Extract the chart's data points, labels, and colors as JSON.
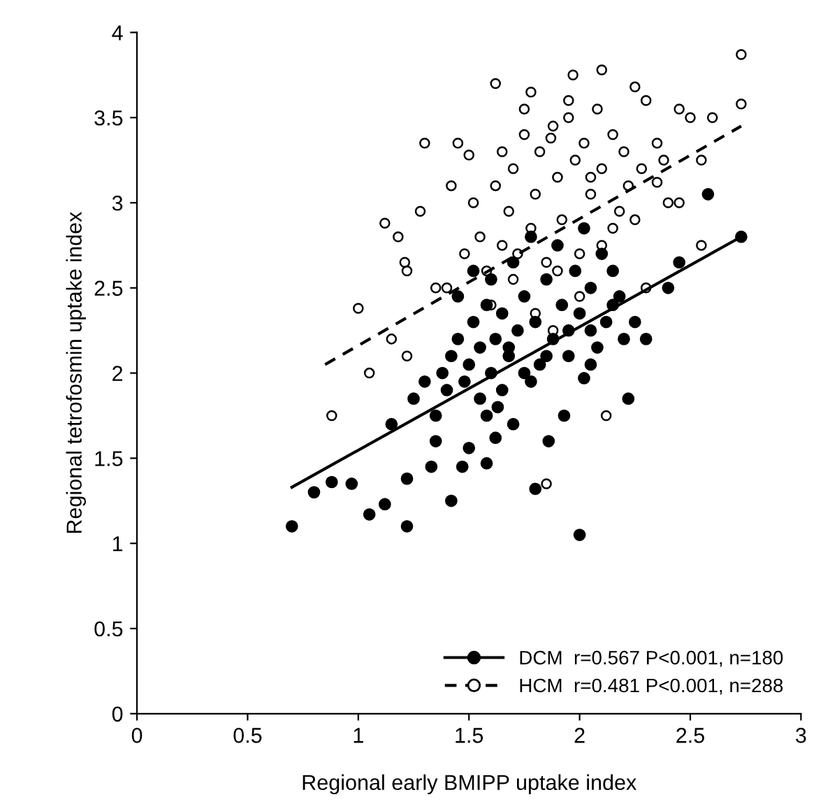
{
  "chart_data": {
    "type": "scatter",
    "xlabel": "Regional early BMIPP uptake index",
    "ylabel": "Regional tetrofosmin uptake index",
    "xlim": [
      0,
      3
    ],
    "ylim": [
      0,
      4
    ],
    "xticks": [
      0,
      0.5,
      1,
      1.5,
      2,
      2.5,
      3
    ],
    "yticks": [
      0,
      0.5,
      1,
      1.5,
      2,
      2.5,
      3,
      3.5,
      4
    ],
    "grid": false,
    "legend": "bottom right",
    "series": [
      {
        "name": "DCM  r=0.567 P<0.001, n=180",
        "color": "#000000",
        "marker": "circle",
        "x": [
          0.7,
          0.8,
          0.88,
          0.97,
          1.05,
          1.12,
          1.22,
          1.22,
          1.33,
          1.42,
          1.47,
          1.5,
          1.58,
          1.62,
          1.8,
          2.0,
          1.86,
          1.93,
          2.22,
          2.02,
          2.4,
          2.58,
          2.73,
          2.45,
          2.2,
          2.15,
          2.05,
          1.15,
          1.25,
          1.3,
          1.35,
          1.38,
          1.4,
          1.42,
          1.45,
          1.48,
          1.5,
          1.52,
          1.55,
          1.55,
          1.58,
          1.6,
          1.6,
          1.62,
          1.65,
          1.65,
          1.68,
          1.7,
          1.72,
          1.75,
          1.75,
          1.78,
          1.8,
          1.82,
          1.85,
          1.88,
          1.9,
          1.92,
          1.95,
          1.98,
          2.0,
          2.02,
          2.05,
          2.08,
          2.1,
          2.12,
          2.15,
          2.18,
          2.25,
          2.3,
          1.45,
          1.52,
          1.58,
          1.63,
          1.7,
          1.78,
          1.85,
          1.95,
          2.05,
          1.35,
          1.68
        ],
        "values": [
          1.1,
          1.3,
          1.36,
          1.35,
          1.17,
          1.23,
          1.1,
          1.38,
          1.45,
          1.25,
          1.45,
          1.56,
          1.47,
          1.62,
          1.32,
          1.05,
          1.6,
          1.75,
          1.85,
          1.97,
          2.5,
          3.05,
          2.8,
          2.65,
          2.2,
          2.4,
          2.25,
          1.7,
          1.85,
          1.95,
          1.75,
          2.0,
          1.9,
          2.1,
          2.2,
          1.95,
          2.05,
          2.3,
          2.15,
          1.85,
          2.4,
          2.0,
          2.55,
          2.2,
          1.9,
          2.35,
          2.1,
          2.65,
          2.25,
          2.0,
          2.45,
          2.8,
          2.3,
          2.05,
          2.55,
          2.2,
          2.75,
          2.4,
          2.1,
          2.6,
          2.35,
          2.85,
          2.5,
          2.15,
          2.7,
          2.3,
          2.6,
          2.45,
          2.3,
          2.2,
          2.45,
          2.6,
          1.75,
          1.8,
          1.7,
          1.95,
          2.1,
          2.25,
          2.05,
          1.6,
          2.15
        ]
      },
      {
        "name": "HCM  r=0.481 P<0.001, n=288",
        "color": "#000000",
        "marker": "circle",
        "x": [
          0.88,
          1.0,
          1.12,
          1.18,
          1.21,
          1.22,
          1.28,
          1.3,
          1.22,
          1.15,
          1.05,
          1.45,
          1.5,
          1.42,
          1.52,
          1.62,
          1.78,
          1.87,
          1.97,
          2.1,
          2.25,
          2.3,
          2.45,
          2.5,
          2.73,
          2.73,
          2.6,
          2.55,
          2.35,
          2.25,
          2.45,
          2.12,
          1.85,
          2.3,
          2.55,
          1.55,
          1.58,
          1.62,
          1.65,
          1.68,
          1.7,
          1.72,
          1.75,
          1.78,
          1.8,
          1.82,
          1.85,
          1.88,
          1.9,
          1.92,
          1.95,
          1.98,
          2.0,
          2.02,
          2.05,
          2.08,
          2.1,
          2.15,
          2.18,
          2.2,
          2.22,
          2.28,
          2.35,
          2.4,
          1.6,
          1.7,
          1.8,
          1.9,
          2.0,
          2.1,
          1.4,
          1.48,
          1.65,
          1.75,
          1.95,
          2.05,
          2.15,
          1.35,
          1.88,
          2.38
        ],
        "values": [
          1.75,
          2.38,
          2.88,
          2.8,
          2.65,
          2.6,
          2.95,
          3.35,
          2.1,
          2.2,
          2.0,
          3.35,
          3.28,
          3.1,
          3.0,
          3.7,
          3.65,
          3.38,
          3.75,
          3.78,
          3.68,
          3.6,
          3.55,
          3.5,
          3.87,
          3.58,
          3.5,
          3.25,
          3.12,
          2.9,
          3.0,
          1.75,
          1.35,
          2.5,
          2.75,
          2.8,
          2.6,
          3.1,
          2.75,
          2.95,
          3.2,
          2.7,
          3.4,
          2.85,
          3.05,
          3.3,
          2.65,
          3.45,
          3.15,
          2.9,
          3.5,
          3.25,
          2.7,
          3.35,
          3.05,
          3.55,
          3.2,
          3.4,
          2.95,
          3.3,
          3.1,
          3.2,
          3.35,
          3.0,
          2.4,
          2.55,
          2.35,
          2.6,
          2.45,
          2.75,
          2.5,
          2.7,
          3.3,
          3.55,
          3.6,
          3.15,
          2.85,
          2.5,
          2.25,
          3.25
        ]
      },
      {
        "type": "line",
        "color": "#000000",
        "line_style": "solid",
        "x": [
          0.7,
          2.73
        ],
        "values": [
          1.33,
          2.8
        ]
      },
      {
        "type": "line",
        "color": "#000000",
        "line_style": "dashed",
        "x": [
          0.85,
          2.73
        ],
        "values": [
          2.05,
          3.45
        ]
      }
    ]
  }
}
